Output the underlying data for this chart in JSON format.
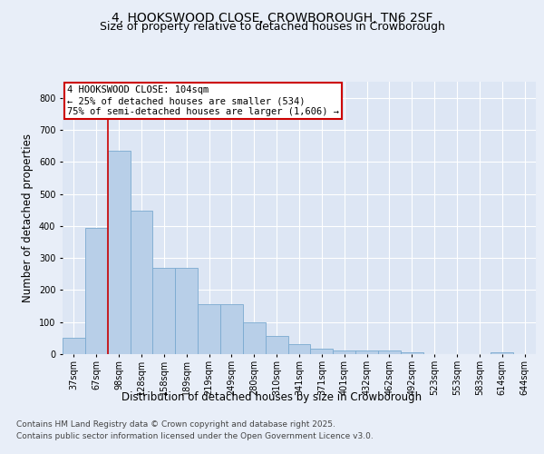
{
  "title": "4, HOOKSWOOD CLOSE, CROWBOROUGH, TN6 2SF",
  "subtitle": "Size of property relative to detached houses in Crowborough",
  "xlabel": "Distribution of detached houses by size in Crowborough",
  "ylabel": "Number of detached properties",
  "categories": [
    "37sqm",
    "67sqm",
    "98sqm",
    "128sqm",
    "158sqm",
    "189sqm",
    "219sqm",
    "249sqm",
    "280sqm",
    "310sqm",
    "341sqm",
    "371sqm",
    "401sqm",
    "432sqm",
    "462sqm",
    "492sqm",
    "523sqm",
    "553sqm",
    "583sqm",
    "614sqm",
    "644sqm"
  ],
  "values": [
    50,
    393,
    635,
    447,
    270,
    270,
    157,
    157,
    100,
    57,
    30,
    18,
    12,
    12,
    12,
    7,
    0,
    0,
    0,
    7,
    0
  ],
  "bar_color": "#b8cfe8",
  "bar_edge_color": "#7aaad0",
  "bg_color": "#e8eef8",
  "plot_bg_color": "#dde6f4",
  "grid_color": "#ffffff",
  "vline_color": "#cc0000",
  "vline_x_index": 2,
  "annotation_text": "4 HOOKSWOOD CLOSE: 104sqm\n← 25% of detached houses are smaller (534)\n75% of semi-detached houses are larger (1,606) →",
  "annotation_box_color": "#cc0000",
  "footer_line1": "Contains HM Land Registry data © Crown copyright and database right 2025.",
  "footer_line2": "Contains public sector information licensed under the Open Government Licence v3.0.",
  "ylim": [
    0,
    850
  ],
  "yticks": [
    0,
    100,
    200,
    300,
    400,
    500,
    600,
    700,
    800
  ],
  "title_fontsize": 10,
  "subtitle_fontsize": 9,
  "axis_label_fontsize": 8.5,
  "tick_fontsize": 7,
  "annotation_fontsize": 7.5,
  "footer_fontsize": 6.5
}
